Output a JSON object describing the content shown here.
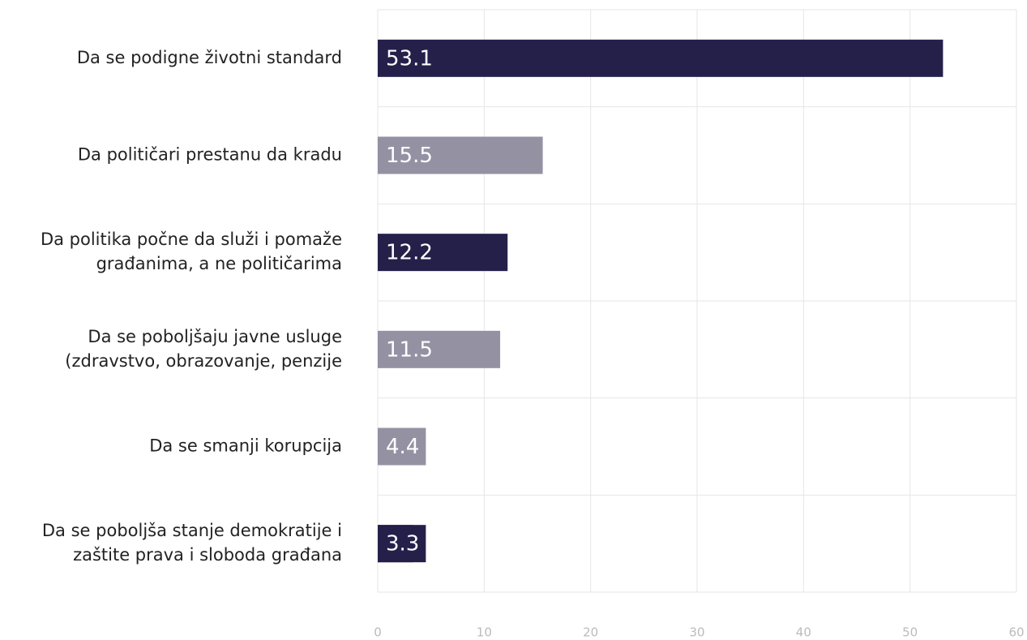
{
  "chart_data": {
    "type": "bar",
    "orientation": "horizontal",
    "categories": [
      [
        "Da se podigne životni standard"
      ],
      [
        "Da političari prestanu da kradu"
      ],
      [
        "Da politika počne da služi i pomaže",
        "građanima, a ne političarima"
      ],
      [
        "Da se poboljšaju javne usluge",
        "(zdravstvo, obrazovanje, penzije"
      ],
      [
        "Da se smanji korupcija"
      ],
      [
        "Da se poboljša stanje demokratije i",
        "zaštite prava i sloboda građana"
      ]
    ],
    "values": [
      53.1,
      15.5,
      12.2,
      11.5,
      4.4,
      3.3
    ],
    "colors": [
      "#25204a",
      "#9491a3",
      "#25204a",
      "#9491a3",
      "#9491a3",
      "#25204a"
    ],
    "xlim": [
      0,
      60
    ],
    "xticks": [
      0,
      10,
      20,
      30,
      40,
      50,
      60
    ],
    "grid": true
  }
}
